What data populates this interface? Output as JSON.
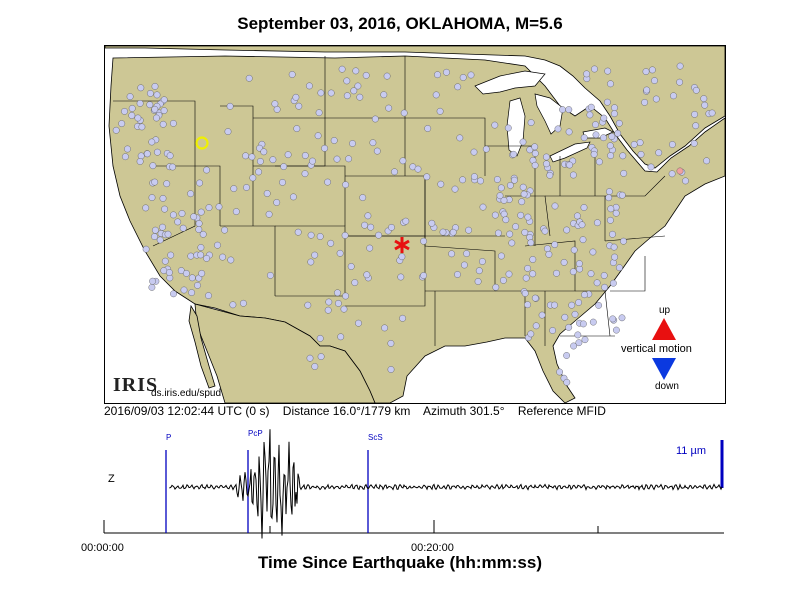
{
  "title": "September 03, 2016, OKLAHOMA, M=5.6",
  "colors": {
    "land": "#cdc795",
    "water": "#ffffff",
    "station": "#c8cbf0",
    "event": "#e81010",
    "reference_station": "#f0f000",
    "phase_line": "#0000c0",
    "up_arrow": "#e81010",
    "down_arrow": "#0b39e0"
  },
  "map": {
    "logo_text": "IRIS",
    "url": "ds.iris.edu/spud",
    "event_icon": "red-star-icon",
    "reference_icon": "yellow-circle-icon",
    "legend": {
      "up": "up",
      "label": "vertical motion",
      "down": "down",
      "up_icon": "red-triangle-up-icon",
      "down_icon": "blue-triangle-down-icon"
    }
  },
  "info": {
    "time": "2016/09/03 12:02:44 UTC (0 s)",
    "distance": "Distance  16.0°/1779 km",
    "azimuth": "Azimuth 301.5°",
    "reference": "Reference MFID"
  },
  "seismogram": {
    "component": "Z",
    "scale": "11 µm",
    "phases": [
      "P",
      "PcP",
      "ScS"
    ],
    "ticks": [
      "00:00:00",
      "00:20:00"
    ],
    "xlabel": "Time Since Earthquake (hh:mm:ss)"
  }
}
